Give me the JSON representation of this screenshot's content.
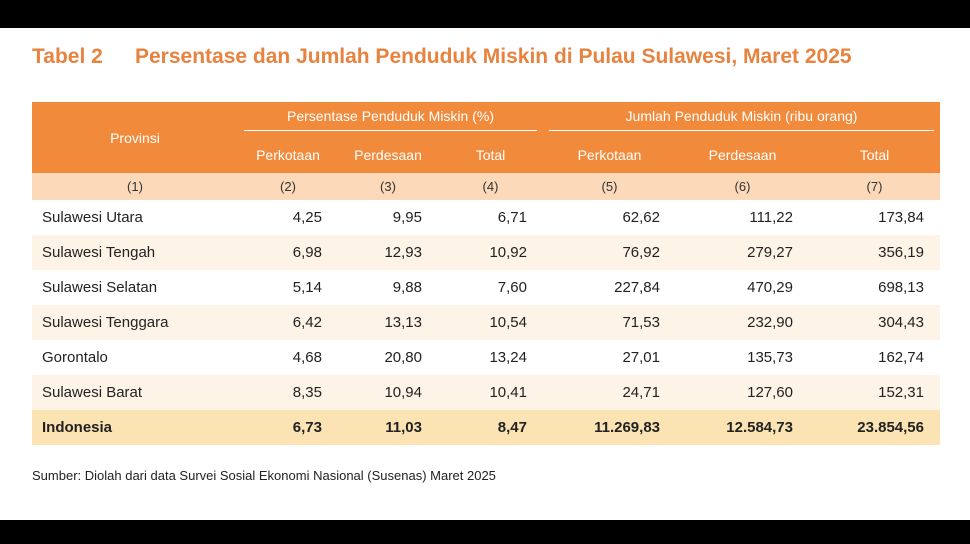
{
  "title": {
    "number": "Tabel 2",
    "text": "Persentase dan Jumlah Penduduk Miskin di Pulau Sulawesi, Maret 2025"
  },
  "table": {
    "province_header": "Provinsi",
    "group_headers": [
      "Persentase Penduduk Miskin (%)",
      "Jumlah Penduduk Miskin (ribu orang)"
    ],
    "sub_headers": [
      "Perkotaan",
      "Perdesaan",
      "Total",
      "Perkotaan",
      "Perdesaan",
      "Total"
    ],
    "column_numbers": [
      "(1)",
      "(2)",
      "(3)",
      "(4)",
      "(5)",
      "(6)",
      "(7)"
    ],
    "rows": [
      [
        "Sulawesi Utara",
        "4,25",
        "9,95",
        "6,71",
        "62,62",
        "111,22",
        "173,84"
      ],
      [
        "Sulawesi Tengah",
        "6,98",
        "12,93",
        "10,92",
        "76,92",
        "279,27",
        "356,19"
      ],
      [
        "Sulawesi Selatan",
        "5,14",
        "9,88",
        "7,60",
        "227,84",
        "470,29",
        "698,13"
      ],
      [
        "Sulawesi Tenggara",
        "6,42",
        "13,13",
        "10,54",
        "71,53",
        "232,90",
        "304,43"
      ],
      [
        "Gorontalo",
        "4,68",
        "20,80",
        "13,24",
        "27,01",
        "135,73",
        "162,74"
      ],
      [
        "Sulawesi Barat",
        "8,35",
        "10,94",
        "10,41",
        "24,71",
        "127,60",
        "152,31"
      ]
    ],
    "total_row": [
      "Indonesia",
      "6,73",
      "11,03",
      "8,47",
      "11.269,83",
      "12.584,73",
      "23.854,56"
    ]
  },
  "source": "Sumber: Diolah dari data Survei Sosial Ekonomi Nasional (Susenas) Maret 2025",
  "colors": {
    "accent": "#e8823f",
    "header_bg": "#f28a3c",
    "number_row_bg": "#fbd9b9",
    "stripe_bg": "#fdf3e7",
    "total_row_bg": "#fbe3b4"
  }
}
